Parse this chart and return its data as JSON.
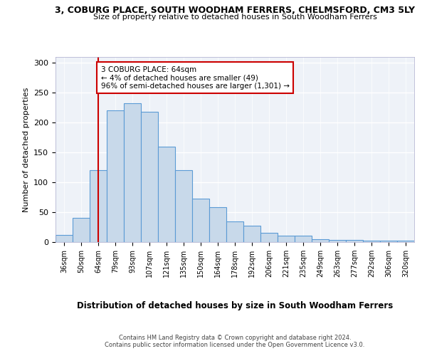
{
  "title1": "3, COBURG PLACE, SOUTH WOODHAM FERRERS, CHELMSFORD, CM3 5LY",
  "title2": "Size of property relative to detached houses in South Woodham Ferrers",
  "xlabel": "Distribution of detached houses by size in South Woodham Ferrers",
  "ylabel": "Number of detached properties",
  "categories": [
    "36sqm",
    "50sqm",
    "64sqm",
    "79sqm",
    "93sqm",
    "107sqm",
    "121sqm",
    "135sqm",
    "150sqm",
    "164sqm",
    "178sqm",
    "192sqm",
    "206sqm",
    "221sqm",
    "235sqm",
    "249sqm",
    "263sqm",
    "277sqm",
    "292sqm",
    "306sqm",
    "320sqm"
  ],
  "bar_values": [
    12,
    40,
    120,
    220,
    232,
    218,
    160,
    120,
    73,
    59,
    34,
    28,
    15,
    11,
    11,
    5,
    4,
    3,
    2,
    2,
    2
  ],
  "annotation_text": "3 COBURG PLACE: 64sqm\n← 4% of detached houses are smaller (49)\n96% of semi-detached houses are larger (1,301) →",
  "vline_category_idx": 2,
  "bar_color": "#c8d9ea",
  "bar_edge_color": "#5b9bd5",
  "vline_color": "#cc0000",
  "annotation_box_color": "#cc0000",
  "background_color": "#eef2f8",
  "footer1": "Contains HM Land Registry data © Crown copyright and database right 2024.",
  "footer2": "Contains public sector information licensed under the Open Government Licence v3.0.",
  "ylim": [
    0,
    310
  ],
  "yticks": [
    0,
    50,
    100,
    150,
    200,
    250,
    300
  ]
}
